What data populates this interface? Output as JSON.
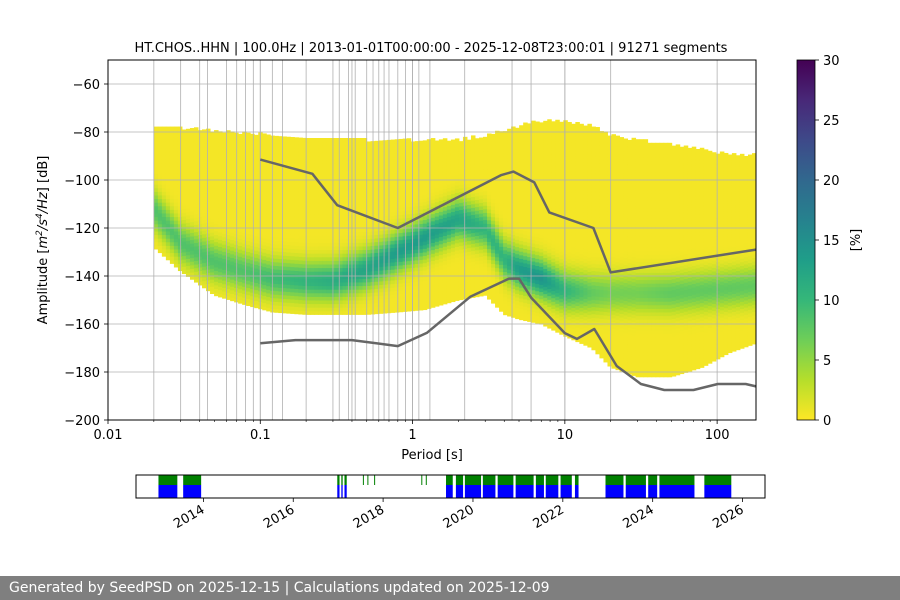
{
  "chart_data": [
    {
      "type": "heatmap",
      "title": "HT.CHOS..HHN | 100.0Hz | 2013-01-01T00:00:00 - 2025-12-08T23:00:01 | 91271 segments",
      "xlabel": "Period [s]",
      "ylabel_parts": [
        "Amplitude [",
        "m",
        "2",
        "/",
        "s",
        "4",
        "/",
        "Hz",
        "] [dB]"
      ],
      "xscale": "log",
      "xlim": [
        0.01,
        180
      ],
      "ylim": [
        -200,
        -50
      ],
      "x_ticks": [
        0.01,
        0.1,
        1,
        10,
        100
      ],
      "x_tick_labels": [
        "0.01",
        "0.1",
        "1",
        "10",
        "100"
      ],
      "y_ticks": [
        -200,
        -180,
        -160,
        -140,
        -120,
        -100,
        -80,
        -60
      ],
      "y_tick_labels": [
        "−200",
        "−180",
        "−160",
        "−140",
        "−120",
        "−100",
        "−80",
        "−60"
      ],
      "colorbar": {
        "label": "[%]",
        "range": [
          0,
          30
        ],
        "ticks": [
          0,
          5,
          10,
          15,
          20,
          25,
          30
        ],
        "tick_labels": [
          "0",
          "5",
          "10",
          "15",
          "20",
          "25",
          "30"
        ],
        "colormap": [
          "#fde725",
          "#b5de2b",
          "#6ece58",
          "#35b779",
          "#1f9e89",
          "#26828e",
          "#31688e",
          "#3e4989",
          "#482878",
          "#440154"
        ]
      },
      "psd_band": {
        "periods": [
          0.02,
          0.03,
          0.05,
          0.08,
          0.12,
          0.2,
          0.3,
          0.5,
          0.8,
          1.2,
          2,
          3,
          4,
          5,
          7,
          10,
          15,
          20,
          30,
          50,
          80,
          120,
          180
        ],
        "upper_db": [
          -78,
          -79,
          -80,
          -81,
          -82,
          -83,
          -83,
          -84,
          -84,
          -84,
          -84,
          -82,
          -80,
          -78,
          -76,
          -76,
          -78,
          -82,
          -84,
          -86,
          -88,
          -90,
          -90
        ],
        "lower_db": [
          -128,
          -138,
          -148,
          -152,
          -155,
          -156,
          -156,
          -156,
          -155,
          -154,
          -150,
          -148,
          -156,
          -158,
          -160,
          -165,
          -170,
          -178,
          -182,
          -182,
          -178,
          -172,
          -168
        ],
        "mode_db": [
          -112,
          -126,
          -134,
          -138,
          -141,
          -142,
          -142,
          -137,
          -130,
          -124,
          -116,
          -120,
          -133,
          -137,
          -141,
          -146,
          -147,
          -147,
          -147,
          -147,
          -146,
          -145,
          -144
        ],
        "peak_percent": [
          8,
          8,
          8,
          8,
          9,
          10,
          11,
          12,
          13,
          13,
          12,
          10,
          10,
          13,
          14,
          10,
          7,
          6,
          6,
          7,
          7,
          7,
          7
        ]
      },
      "noise_models": [
        {
          "name": "NHNM",
          "periods": [
            0.1,
            0.22,
            0.32,
            0.8,
            3.8,
            4.6,
            6.3,
            7.9,
            15.4,
            20,
            180
          ],
          "db": [
            -91.5,
            -97.4,
            -110.5,
            -120,
            -98,
            -96.5,
            -101,
            -113.5,
            -120,
            -138.5,
            -129
          ]
        },
        {
          "name": "NLNM",
          "periods": [
            0.1,
            0.17,
            0.4,
            0.8,
            1.24,
            2.4,
            4.3,
            5,
            6,
            10,
            12,
            15.6,
            21.9,
            31.6,
            45,
            70,
            101,
            154,
            180
          ],
          "db": [
            -168,
            -166.7,
            -166.7,
            -169.2,
            -163.7,
            -148.6,
            -141.1,
            -141.1,
            -149,
            -163.8,
            -166.2,
            -162.1,
            -177.5,
            -185,
            -187.5,
            -187.5,
            -185,
            -185,
            -186
          ]
        }
      ],
      "discrete_frequency_lines_period_s": [
        0.02,
        0.03,
        0.04,
        0.045,
        0.06,
        0.07,
        0.08,
        0.09,
        0.1,
        0.12,
        0.14,
        0.2,
        0.3,
        0.33,
        0.38,
        0.4,
        0.42,
        0.5,
        0.55,
        0.6,
        0.65,
        0.7,
        0.8,
        0.9,
        1,
        1.1,
        1.3,
        2.2,
        4.5,
        6,
        10,
        20
      ]
    },
    {
      "type": "timeline",
      "x_ticks": [
        "2014",
        "2016",
        "2018",
        "2020",
        "2022",
        "2024",
        "2026"
      ],
      "xlim": [
        2012.5,
        2026.5
      ],
      "colors": {
        "top": "#008000",
        "bottom": "#0000ff"
      },
      "data_spans": [
        [
          2013.0,
          2013.42
        ],
        [
          2013.55,
          2013.95
        ],
        [
          2016.98,
          2017.03
        ],
        [
          2017.07,
          2017.1
        ],
        [
          2017.14,
          2017.19
        ],
        [
          2019.4,
          2019.55
        ],
        [
          2019.62,
          2019.78
        ],
        [
          2019.82,
          2020.18
        ],
        [
          2020.22,
          2020.5
        ],
        [
          2020.55,
          2020.9
        ],
        [
          2020.95,
          2021.35
        ],
        [
          2021.4,
          2021.58
        ],
        [
          2021.62,
          2021.9
        ],
        [
          2021.95,
          2022.2
        ],
        [
          2022.27,
          2022.35
        ],
        [
          2022.95,
          2023.35
        ],
        [
          2023.4,
          2023.85
        ],
        [
          2023.9,
          2024.1
        ],
        [
          2024.15,
          2024.93
        ],
        [
          2025.15,
          2025.75
        ]
      ],
      "sparse_top_marks": [
        2017.55,
        2017.65,
        2017.8,
        2018.85,
        2018.95
      ]
    }
  ],
  "footer": {
    "text": "Generated by SeedPSD on 2025-12-15 | Calculations updated on 2025-12-09"
  }
}
